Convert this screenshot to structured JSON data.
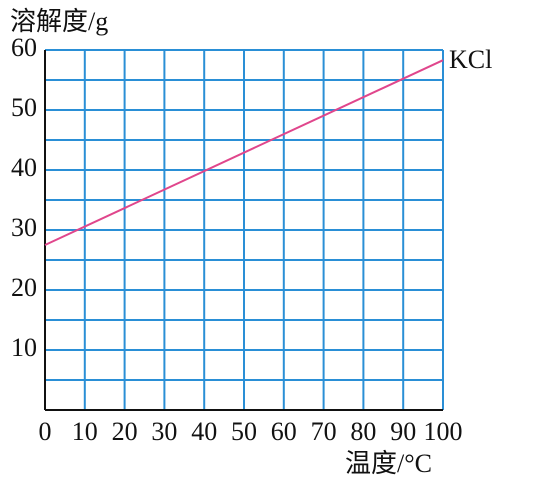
{
  "chart_data": {
    "type": "line",
    "ylabel": "溶解度/g",
    "xlabel": "温度/°C",
    "x": [
      0,
      100
    ],
    "series": [
      {
        "name": "KCl",
        "color": "#e0468c",
        "values": [
          27.5,
          58.3
        ]
      }
    ],
    "xlim": [
      0,
      100
    ],
    "xticks": [
      0,
      10,
      20,
      30,
      40,
      50,
      60,
      70,
      80,
      90,
      100
    ],
    "ylim": [
      0,
      60
    ],
    "yticks": [
      10,
      20,
      30,
      40,
      50,
      60
    ],
    "ygrid": [
      5,
      10,
      15,
      20,
      25,
      30,
      35,
      40,
      45,
      50,
      55,
      60
    ],
    "grid": true,
    "grid_color": "#2a8fd6"
  }
}
